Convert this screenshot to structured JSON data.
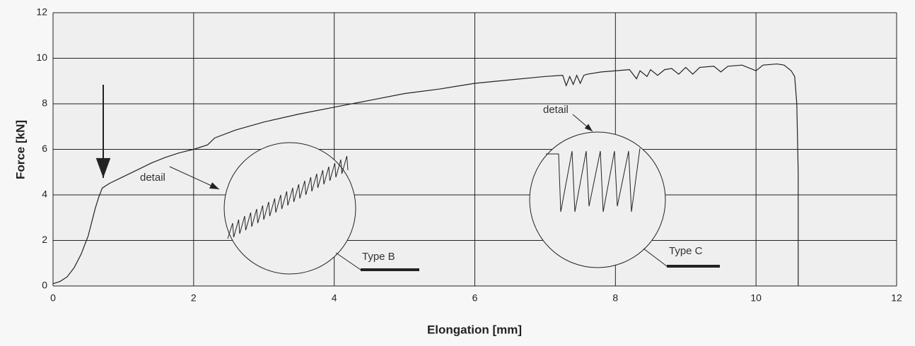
{
  "chart_data": {
    "type": "line",
    "xlabel": "Elongation [mm]",
    "ylabel": "Force [kN]",
    "x": [
      0,
      0.1,
      0.2,
      0.3,
      0.4,
      0.5,
      0.55,
      0.6,
      0.65,
      0.7,
      0.8,
      1.0,
      1.2,
      1.4,
      1.6,
      1.8,
      2.0,
      2.2,
      2.3,
      2.6,
      3.0,
      3.5,
      4.0,
      4.5,
      5.0,
      5.5,
      6.0,
      6.5,
      7.0,
      7.25,
      7.3,
      7.35,
      7.4,
      7.45,
      7.5,
      7.55,
      7.6,
      7.8,
      8.0,
      8.2,
      8.3,
      8.35,
      8.45,
      8.5,
      8.6,
      8.7,
      8.8,
      8.9,
      9.0,
      9.1,
      9.2,
      9.4,
      9.5,
      9.6,
      9.8,
      10.0,
      10.1,
      10.3,
      10.4,
      10.5,
      10.55,
      10.58,
      10.6,
      10.6
    ],
    "values": [
      0.1,
      0.2,
      0.4,
      0.8,
      1.4,
      2.2,
      2.8,
      3.4,
      3.9,
      4.3,
      4.5,
      4.8,
      5.1,
      5.4,
      5.65,
      5.85,
      6.0,
      6.2,
      6.5,
      6.85,
      7.2,
      7.55,
      7.85,
      8.15,
      8.45,
      8.65,
      8.9,
      9.05,
      9.2,
      9.25,
      8.8,
      9.2,
      8.85,
      9.25,
      8.9,
      9.25,
      9.3,
      9.4,
      9.45,
      9.5,
      9.1,
      9.45,
      9.2,
      9.5,
      9.25,
      9.5,
      9.55,
      9.3,
      9.6,
      9.3,
      9.6,
      9.65,
      9.4,
      9.65,
      9.7,
      9.45,
      9.7,
      9.75,
      9.7,
      9.45,
      9.2,
      8.0,
      5.0,
      0
    ],
    "color": "#222222",
    "xlim": [
      0,
      12
    ],
    "xticks": [
      0,
      2,
      4,
      6,
      8,
      10,
      12
    ],
    "ylim": [
      0,
      12
    ],
    "yticks": [
      0,
      2,
      4,
      6,
      8,
      10,
      12
    ],
    "grid": true,
    "annotations": [
      "detail",
      "detail",
      "Type B",
      "Type C"
    ]
  }
}
